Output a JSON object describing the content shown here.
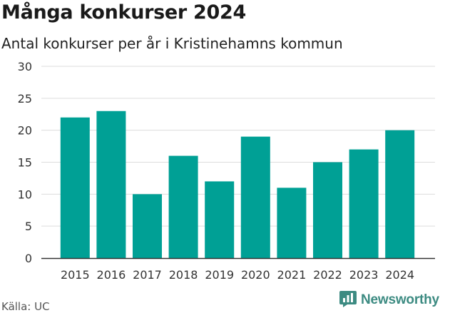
{
  "header": {
    "title": "Många konkurser 2024",
    "subtitle": "Antal konkurser per år i Kristinehamns kommun"
  },
  "footer": {
    "source": "Källa: UC",
    "brand": "Newsworthy",
    "brand_icon": "newsworthy-logo-icon"
  },
  "colors": {
    "bar": "#00a095",
    "grid": "#dddddd",
    "axis": "#333333",
    "brand": "#3d8b82"
  },
  "chart_data": {
    "type": "bar",
    "title": "Många konkurser 2024",
    "subtitle": "Antal konkurser per år i Kristinehamns kommun",
    "xlabel": "",
    "ylabel": "",
    "categories": [
      "2015",
      "2016",
      "2017",
      "2018",
      "2019",
      "2020",
      "2021",
      "2022",
      "2023",
      "2024"
    ],
    "values": [
      22,
      23,
      10,
      16,
      12,
      19,
      11,
      15,
      17,
      20
    ],
    "ylim": [
      0,
      30
    ],
    "yticks": [
      0,
      5,
      10,
      15,
      20,
      25,
      30
    ],
    "grid": true,
    "legend": "none"
  }
}
